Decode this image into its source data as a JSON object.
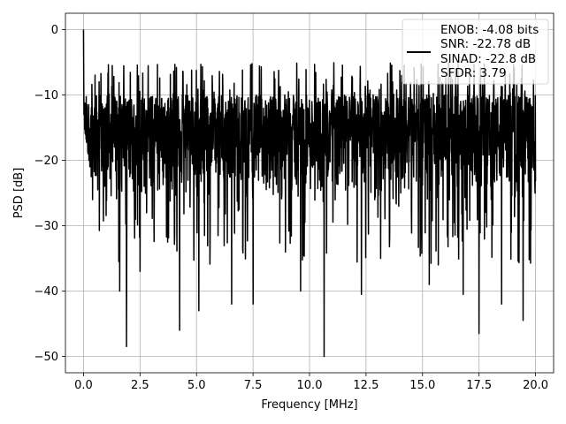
{
  "chart_data": {
    "type": "line",
    "title": "",
    "xlabel": "Frequency [MHz]",
    "ylabel": "PSD [dB]",
    "xlim": [
      -0.8,
      20.8
    ],
    "ylim": [
      -52.5,
      2.5
    ],
    "xticks": [
      0.0,
      2.5,
      5.0,
      7.5,
      10.0,
      12.5,
      15.0,
      17.5,
      20.0
    ],
    "xtick_labels": [
      "0.0",
      "2.5",
      "5.0",
      "7.5",
      "10.0",
      "12.5",
      "15.0",
      "17.5",
      "20.0"
    ],
    "yticks": [
      0,
      -10,
      -20,
      -30,
      -40,
      -50
    ],
    "ytick_labels": [
      "0",
      "−10",
      "−20",
      "−30",
      "−40",
      "−50"
    ],
    "grid": true,
    "legend_position": "top-right",
    "legend": {
      "line_color": "#000000",
      "entries": [
        "ENOB: -4.08 bits",
        "SNR: -22.78 dB",
        "SINAD: -22.8 dB",
        "SFDR: 3.79"
      ]
    },
    "series": [
      {
        "color": "#000000",
        "x_range": [
          0.0,
          20.0
        ],
        "num_points": 2000,
        "peak": {
          "x": 0.0,
          "y": 0.0
        },
        "typical_upper_envelope": -10,
        "typical_lower_envelope": -27,
        "dips": [
          {
            "x": 1.9,
            "y": -48.5
          },
          {
            "x": 10.65,
            "y": -50.0
          },
          {
            "x": 17.5,
            "y": -46.5
          },
          {
            "x": 4.25,
            "y": -46.0
          },
          {
            "x": 19.45,
            "y": -44.5
          },
          {
            "x": 6.55,
            "y": -42.0
          },
          {
            "x": 7.5,
            "y": -42.0
          },
          {
            "x": 12.3,
            "y": -40.5
          },
          {
            "x": 5.1,
            "y": -43.0
          },
          {
            "x": 1.6,
            "y": -40.0
          },
          {
            "x": 16.8,
            "y": -40.5
          },
          {
            "x": 18.5,
            "y": -42.0
          },
          {
            "x": 9.6,
            "y": -40.0
          },
          {
            "x": 15.3,
            "y": -39.0
          },
          {
            "x": 2.5,
            "y": -37.0
          }
        ]
      }
    ]
  }
}
